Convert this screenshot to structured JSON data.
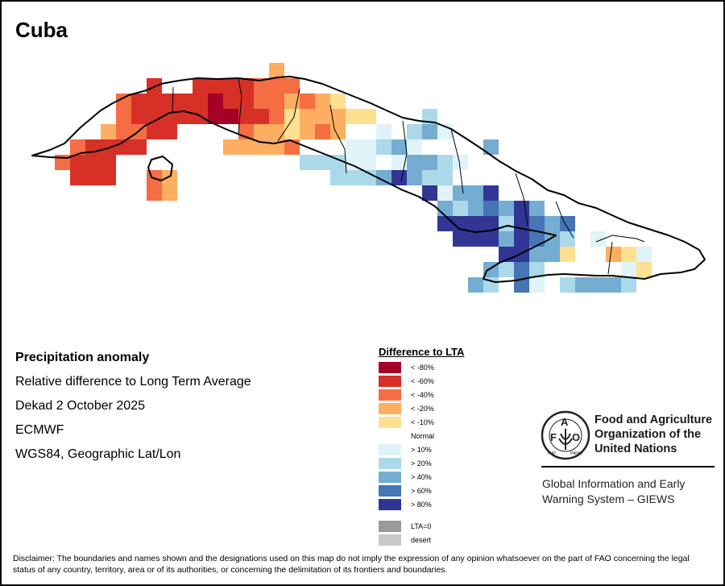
{
  "title": "Cuba",
  "info": {
    "heading": "Precipitation anomaly",
    "line1": "Relative difference to Long Term Average",
    "line2": "Dekad 2 October 2025",
    "line3": "ECMWF",
    "line4": "WGS84, Geographic Lat/Lon"
  },
  "legend": {
    "title": "Difference to LTA",
    "items": [
      {
        "code": "A",
        "label": "< -80%",
        "color": "#a50026"
      },
      {
        "code": "B",
        "label": "< -60%",
        "color": "#d73027"
      },
      {
        "code": "C",
        "label": "< -40%",
        "color": "#f46d43"
      },
      {
        "code": "D",
        "label": "< -20%",
        "color": "#fdae61"
      },
      {
        "code": "E",
        "label": "< -10%",
        "color": "#fee090"
      },
      {
        "code": "N",
        "label": "Normal",
        "color": "#ffffff"
      },
      {
        "code": "F",
        "label": "> 10%",
        "color": "#e0f3f8"
      },
      {
        "code": "G",
        "label": "> 20%",
        "color": "#abd9e9"
      },
      {
        "code": "H",
        "label": "> 40%",
        "color": "#74add1"
      },
      {
        "code": "I",
        "label": "> 60%",
        "color": "#4575b4"
      },
      {
        "code": "J",
        "label": "> 80%",
        "color": "#313695"
      },
      {
        "code": "Z",
        "label": "LTA=0",
        "color": "#999999"
      },
      {
        "code": "S",
        "label": "desert",
        "color": "#c8c8c8"
      }
    ]
  },
  "org": {
    "name_line1": "Food and Agriculture",
    "name_line2": "Organization of the",
    "name_line3": "United Nations",
    "logo_text": "FAO FIAT PANIS",
    "system_line1": "Global Information and Early",
    "system_line2": "Warning System – GIEWS"
  },
  "disclaimer": "Disclaimer: The boundaries and names shown and the designations used on this map do not imply the expression of any opinion whatsoever on the part of FAO concerning the legal status of any country, territory, area or of its authorities, or concerning the delimitation of its frontiers and boundaries.",
  "grid": {
    "rows": [
      "..............D...........................",
      "......B...BBBBB.D.........................",
      "....BBBBB.BBBAABCCDCDE.........................",
      "...CBBBBBBBBAABBCEDDDEE.....G.................",
      "..DCCBBBBBBB.BBCDEDDCDE..F.FGHF..............",
      "CBBBBBBB.....DDDDCD..NN.GGHGHF..............."
    ]
  }
}
